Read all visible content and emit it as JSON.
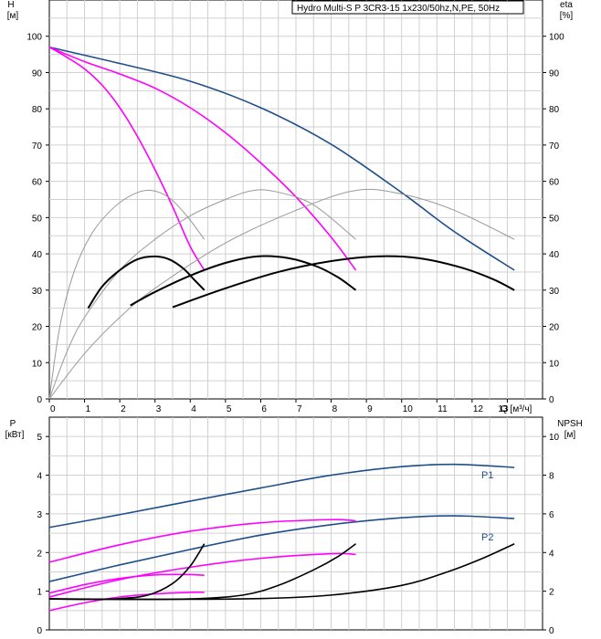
{
  "chart_data": [
    {
      "type": "line",
      "title": "Hydro Multi-S P 3CR3-15 1x230/50hz,N,PE, 50Hz",
      "xlabel": "Q [м³/ч]",
      "ylabel": "H",
      "ylabel_unit": "[м]",
      "y2label": "eta",
      "y2label_unit": "[%]",
      "xlim": [
        0,
        14
      ],
      "ylim": [
        0,
        110
      ],
      "y2lim": [
        0,
        110
      ],
      "x_ticks": [
        "0",
        "1",
        "2",
        "3",
        "4",
        "5",
        "6",
        "7",
        "8",
        "9",
        "10",
        "11",
        "12",
        "13"
      ],
      "y_ticks": [
        "0",
        "10",
        "20",
        "30",
        "40",
        "50",
        "60",
        "70",
        "80",
        "90",
        "100"
      ],
      "y2_ticks": [
        "0",
        "10",
        "20",
        "30",
        "40",
        "50",
        "60",
        "70",
        "80",
        "90",
        "100"
      ],
      "grid": true,
      "series": [
        {
          "color": "#1f4f8b",
          "role": "head-1-pump",
          "x": [
            0,
            2,
            4,
            6,
            8,
            10,
            11.5,
            13.2
          ],
          "values": [
            97,
            92.5,
            87.6,
            80.3,
            70.2,
            56.9,
            46.1,
            35.5
          ]
        },
        {
          "color": "#ff00ff",
          "role": "head-2-pumps",
          "x": [
            0,
            1,
            2,
            3,
            4,
            5,
            6,
            7,
            8,
            8.7
          ],
          "values": [
            97,
            93,
            89.6,
            85.7,
            80.3,
            73.4,
            65.1,
            55.7,
            44.6,
            35.5
          ]
        },
        {
          "color": "#ff00ff",
          "role": "head-3-pumps",
          "x": [
            0,
            0.5,
            1,
            1.5,
            2,
            2.5,
            3,
            3.5,
            4,
            4.4
          ],
          "values": [
            97,
            94.2,
            91,
            86.5,
            80.3,
            72.4,
            63.2,
            53,
            42,
            35.5
          ]
        },
        {
          "color": "#999999",
          "role": "efficiency-1",
          "x": [
            0,
            0.3,
            0.7,
            1.2,
            1.8,
            2.4,
            2.9,
            3.4,
            3.9,
            4.4
          ],
          "values": [
            0,
            20,
            35,
            45.5,
            52.5,
            56.5,
            57.5,
            55.5,
            50.5,
            44
          ]
        },
        {
          "color": "#999999",
          "role": "efficiency-2",
          "x": [
            0,
            0.5,
            1,
            2,
            3,
            4,
            5,
            5.8,
            6.5,
            7.5,
            8.7
          ],
          "values": [
            0,
            13,
            22.5,
            35.5,
            44,
            50.5,
            55,
            57.5,
            57,
            53.5,
            44
          ]
        },
        {
          "color": "#999999",
          "role": "efficiency-3",
          "x": [
            0,
            1,
            2,
            3,
            5,
            7,
            8.7,
            10,
            11.5,
            13.2
          ],
          "values": [
            0,
            12.5,
            22.5,
            30.5,
            43,
            52,
            57.5,
            56.5,
            52,
            44
          ]
        },
        {
          "color": "#000000",
          "role": "working-efficiency-1",
          "x": [
            1.1,
            1.5,
            2,
            2.5,
            3,
            3.4,
            3.8,
            4.1,
            4.4
          ],
          "values": [
            25,
            31,
            35.5,
            38.5,
            39.3,
            38.5,
            36,
            33,
            30
          ]
        },
        {
          "color": "#000000",
          "role": "working-efficiency-2",
          "x": [
            2.3,
            3,
            4,
            5,
            5.9,
            6.8,
            7.6,
            8.2,
            8.7
          ],
          "values": [
            25.8,
            29.5,
            34,
            37.5,
            39.3,
            38.8,
            36.5,
            33.5,
            30
          ]
        },
        {
          "color": "#000000",
          "role": "working-efficiency-3",
          "x": [
            3.5,
            5,
            6.5,
            8,
            9.3,
            10.5,
            11.7,
            12.6,
            13.2
          ],
          "values": [
            25.3,
            30.5,
            35,
            38,
            39.3,
            38.8,
            36.2,
            33,
            30
          ]
        }
      ]
    },
    {
      "type": "line",
      "xlabel": "Q [м³/ч]",
      "ylabel": "P",
      "ylabel_unit": "[кВт]",
      "y2label": "NPSH",
      "y2label_unit": "[м]",
      "xlim": [
        0,
        14
      ],
      "ylim": [
        0,
        5.5
      ],
      "y2lim": [
        0,
        11
      ],
      "y_ticks": [
        "0",
        "1",
        "2",
        "3",
        "4",
        "5"
      ],
      "y2_ticks": [
        "0",
        "2",
        "4",
        "6",
        "8",
        "10"
      ],
      "grid": true,
      "legend_labels": [
        "P1",
        "P2"
      ],
      "series": [
        {
          "color": "#1f4f8b",
          "role": "P1-1",
          "x": [
            0,
            2,
            4,
            6,
            8,
            10,
            11.5,
            13.2
          ],
          "values": [
            2.65,
            2.98,
            3.33,
            3.67,
            4.0,
            4.22,
            4.28,
            4.2
          ]
        },
        {
          "color": "#1f4f8b",
          "role": "P2-1",
          "x": [
            0,
            2,
            4,
            6,
            8,
            10,
            11.5,
            13.2
          ],
          "values": [
            1.25,
            1.68,
            2.08,
            2.45,
            2.72,
            2.9,
            2.95,
            2.88
          ]
        },
        {
          "color": "#ff00ff",
          "role": "P1-2",
          "x": [
            0,
            2,
            4,
            6,
            8,
            8.7
          ],
          "values": [
            1.75,
            2.2,
            2.55,
            2.77,
            2.85,
            2.82
          ]
        },
        {
          "color": "#ff00ff",
          "role": "P2-2",
          "x": [
            0,
            2,
            4,
            6,
            8,
            8.7
          ],
          "values": [
            0.85,
            1.3,
            1.62,
            1.85,
            1.97,
            1.95
          ]
        },
        {
          "color": "#ff00ff",
          "role": "P1-3",
          "x": [
            0,
            1,
            2,
            3,
            4,
            4.4
          ],
          "values": [
            0.95,
            1.17,
            1.33,
            1.42,
            1.43,
            1.41
          ]
        },
        {
          "color": "#ff00ff",
          "role": "P2-3",
          "x": [
            0,
            1,
            2,
            3,
            4,
            4.4
          ],
          "values": [
            0.5,
            0.7,
            0.85,
            0.93,
            0.97,
            0.97
          ]
        },
        {
          "color": "#000000",
          "role": "npsh-1",
          "x": [
            0,
            1,
            2,
            2.8,
            3.5,
            4.0,
            4.4
          ],
          "values": [
            1.6,
            1.58,
            1.62,
            1.8,
            2.4,
            3.3,
            4.45
          ]
        },
        {
          "color": "#000000",
          "role": "npsh-2",
          "x": [
            0,
            2,
            4,
            5.5,
            6.5,
            7.5,
            8.2,
            8.7
          ],
          "values": [
            1.6,
            1.58,
            1.6,
            1.8,
            2.3,
            3.1,
            3.8,
            4.45
          ]
        },
        {
          "color": "#000000",
          "role": "npsh-3",
          "x": [
            0,
            3,
            6,
            8,
            10,
            11.3,
            12.3,
            13.2
          ],
          "values": [
            1.6,
            1.58,
            1.62,
            1.8,
            2.3,
            3.0,
            3.7,
            4.45
          ]
        }
      ]
    }
  ]
}
